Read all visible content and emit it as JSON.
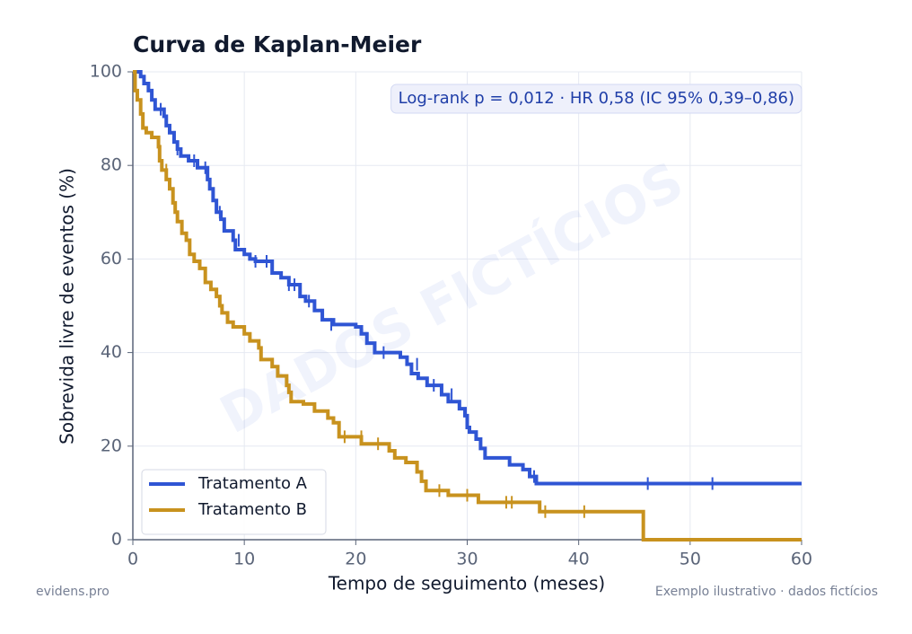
{
  "chart_data": {
    "type": "km",
    "title": "Curva de Kaplan-Meier",
    "xlabel": "Tempo de seguimento (meses)",
    "ylabel": "Sobrevida livre de eventos (%)",
    "annotation": "Log-rank p = 0,012  ·  HR 0,58 (IC 95% 0,39–0,86)",
    "watermark": "DADOS FICTÍCIOS",
    "footer_left": "evidens.pro",
    "footer_right": "Exemplo ilustrativo · dados fictícios",
    "xlim": [
      0,
      60
    ],
    "xticks": [
      0,
      10,
      20,
      30,
      40,
      50,
      60
    ],
    "ylim": [
      0,
      100
    ],
    "yticks": [
      0,
      20,
      40,
      60,
      80,
      100
    ],
    "grid": true,
    "legend": "lower left",
    "series": [
      {
        "name": "Tratamento A",
        "color": "#2f55d4",
        "x": [
          0,
          0.7,
          1,
          1.4,
          1.7,
          2,
          2.8,
          3,
          3.3,
          3.7,
          4,
          4.3,
          5,
          5.8,
          6.7,
          6.9,
          7.2,
          7.5,
          7.9,
          8.2,
          9,
          9.2,
          10,
          10.5,
          11,
          12.5,
          13.3,
          14,
          15,
          15.5,
          16.3,
          17,
          18,
          20,
          20.5,
          21,
          21.7,
          24,
          24.6,
          25,
          25.6,
          26.4,
          27.7,
          28.3,
          29.3,
          29.8,
          30,
          30.2,
          30.8,
          31.2,
          31.6,
          33.8,
          35,
          35.6,
          36.2,
          60
        ],
        "values": [
          100,
          99,
          97.5,
          96,
          94,
          92,
          90.5,
          88.5,
          87,
          85,
          83.5,
          82,
          81,
          79.5,
          77,
          75,
          72.5,
          70,
          68.5,
          66,
          64,
          62,
          61,
          60,
          59.5,
          57,
          56,
          54.5,
          52,
          51,
          49,
          47,
          46,
          45.5,
          44,
          42,
          40,
          39,
          37.5,
          35.5,
          34.5,
          33,
          31,
          29.5,
          28,
          26.5,
          24,
          23,
          21.5,
          19.5,
          17.5,
          16,
          15,
          13.5,
          12,
          12
        ],
        "censor_x": [
          2.5,
          4,
          5.5,
          6.5,
          7.8,
          9.5,
          11,
          12,
          14,
          14.5,
          15.8,
          17.8,
          22.5,
          25.5,
          27,
          28.6,
          36,
          46.2,
          52
        ],
        "censor_values": [
          92,
          83.5,
          81,
          79.5,
          70,
          64,
          59.5,
          59.5,
          54.5,
          54.5,
          51,
          46,
          40,
          37.5,
          33,
          31,
          13.5,
          12,
          12
        ]
      },
      {
        "name": "Tratamento B",
        "color": "#c8921e",
        "x": [
          0,
          0.2,
          0.4,
          0.7,
          0.9,
          1.2,
          1.7,
          2.3,
          2.4,
          2.6,
          3,
          3.3,
          3.6,
          3.8,
          4,
          4.4,
          4.8,
          5.1,
          5.5,
          6,
          6.5,
          7,
          7.5,
          7.8,
          8,
          8.5,
          9,
          10,
          10.5,
          11.3,
          11.5,
          12.5,
          13,
          13.8,
          14,
          14.2,
          15.3,
          16.3,
          17.5,
          18,
          18.5,
          20.5,
          23,
          23.5,
          24.5,
          25.5,
          25.9,
          26.3,
          28.3,
          31,
          36.5,
          45.8,
          60
        ],
        "values": [
          100,
          96,
          94,
          91,
          88,
          87,
          86,
          84,
          81,
          79,
          77,
          75,
          72,
          70,
          68,
          65.5,
          64,
          61,
          59.5,
          58,
          55,
          53.5,
          52,
          50,
          48.5,
          46.5,
          45.5,
          44,
          42.5,
          41,
          38.5,
          37,
          35,
          33,
          31.5,
          29.5,
          29,
          27.5,
          26,
          25,
          22,
          20.5,
          19,
          17.5,
          16.5,
          14.5,
          12.5,
          10.5,
          9.5,
          8,
          6,
          0,
          0
        ],
        "censor_x": [
          3,
          19,
          20.5,
          22,
          27.5,
          30,
          33.5,
          34,
          37,
          40.5
        ],
        "censor_values": [
          79,
          22,
          22,
          20.5,
          10.5,
          9.5,
          8,
          8,
          6,
          6
        ]
      }
    ]
  }
}
